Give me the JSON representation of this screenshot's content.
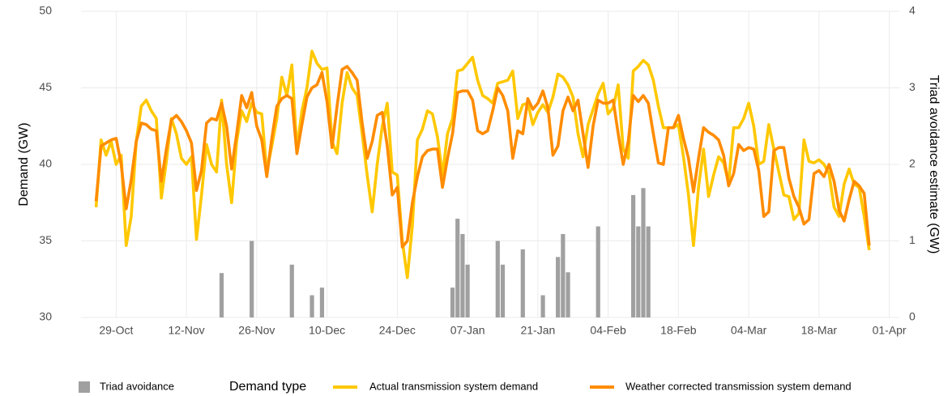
{
  "chart_data": {
    "type": "line",
    "y_label": "Demand (GW)",
    "y2_label": "Triad avoidance estimate (GW)",
    "legend_title": "Demand type",
    "ylim": [
      30,
      50
    ],
    "yticks": [
      30,
      35,
      40,
      45,
      50
    ],
    "y2lim": [
      0,
      4
    ],
    "y2ticks": [
      0,
      1,
      2,
      3,
      4
    ],
    "xlim": [
      "22-Oct",
      "03-Apr"
    ],
    "xticks": [
      "29-Oct",
      "12-Nov",
      "26-Nov",
      "10-Dec",
      "24-Dec",
      "07-Jan",
      "21-Jan",
      "04-Feb",
      "18-Feb",
      "04-Mar",
      "18-Mar",
      "01-Apr"
    ],
    "grid": true,
    "legend": "bottom",
    "x": [
      "25-Oct",
      "26-Oct",
      "27-Oct",
      "28-Oct",
      "29-Oct",
      "30-Oct",
      "31-Oct",
      "01-Nov",
      "02-Nov",
      "03-Nov",
      "04-Nov",
      "05-Nov",
      "06-Nov",
      "07-Nov",
      "08-Nov",
      "09-Nov",
      "10-Nov",
      "11-Nov",
      "12-Nov",
      "13-Nov",
      "14-Nov",
      "15-Nov",
      "16-Nov",
      "17-Nov",
      "18-Nov",
      "19-Nov",
      "20-Nov",
      "21-Nov",
      "22-Nov",
      "23-Nov",
      "24-Nov",
      "25-Nov",
      "26-Nov",
      "27-Nov",
      "28-Nov",
      "29-Nov",
      "30-Nov",
      "01-Dec",
      "02-Dec",
      "03-Dec",
      "04-Dec",
      "05-Dec",
      "06-Dec",
      "07-Dec",
      "08-Dec",
      "09-Dec",
      "10-Dec",
      "11-Dec",
      "12-Dec",
      "13-Dec",
      "14-Dec",
      "15-Dec",
      "16-Dec",
      "17-Dec",
      "18-Dec",
      "19-Dec",
      "20-Dec",
      "21-Dec",
      "22-Dec",
      "23-Dec",
      "24-Dec",
      "25-Dec",
      "26-Dec",
      "27-Dec",
      "28-Dec",
      "29-Dec",
      "30-Dec",
      "31-Dec",
      "01-Jan",
      "02-Jan",
      "03-Jan",
      "04-Jan",
      "05-Jan",
      "06-Jan",
      "07-Jan",
      "08-Jan",
      "09-Jan",
      "10-Jan",
      "11-Jan",
      "12-Jan",
      "13-Jan",
      "14-Jan",
      "15-Jan",
      "16-Jan",
      "17-Jan",
      "18-Jan",
      "19-Jan",
      "20-Jan",
      "21-Jan",
      "22-Jan",
      "23-Jan",
      "24-Jan",
      "25-Jan",
      "26-Jan",
      "27-Jan",
      "28-Jan",
      "29-Jan",
      "30-Jan",
      "31-Jan",
      "01-Feb",
      "02-Feb",
      "03-Feb",
      "04-Feb",
      "05-Feb",
      "06-Feb",
      "07-Feb",
      "08-Feb",
      "09-Feb",
      "10-Feb",
      "11-Feb",
      "12-Feb",
      "13-Feb",
      "14-Feb",
      "15-Feb",
      "16-Feb",
      "17-Feb",
      "18-Feb",
      "19-Feb",
      "20-Feb",
      "21-Feb",
      "22-Feb",
      "23-Feb",
      "24-Feb",
      "25-Feb",
      "26-Feb",
      "27-Feb",
      "28-Feb",
      "01-Mar",
      "02-Mar",
      "03-Mar",
      "04-Mar",
      "05-Mar",
      "06-Mar",
      "07-Mar",
      "08-Mar",
      "09-Mar",
      "10-Mar",
      "11-Mar",
      "12-Mar",
      "13-Mar",
      "14-Mar",
      "15-Mar",
      "16-Mar",
      "17-Mar",
      "18-Mar",
      "19-Mar",
      "20-Mar",
      "21-Mar",
      "22-Mar",
      "23-Mar",
      "24-Mar",
      "25-Mar",
      "26-Mar",
      "27-Mar",
      "28-Mar"
    ],
    "series": [
      {
        "name": "Triad avoidance",
        "type": "bar",
        "axis": "y2",
        "color": "#a0a0a0",
        "x": [
          "19-Nov",
          "25-Nov",
          "03-Dec",
          "07-Dec",
          "09-Dec",
          "04-Jan",
          "05-Jan",
          "06-Jan",
          "07-Jan",
          "13-Jan",
          "14-Jan",
          "18-Jan",
          "22-Jan",
          "25-Jan",
          "26-Jan",
          "27-Jan",
          "02-Feb",
          "09-Feb",
          "10-Feb",
          "11-Feb",
          "12-Feb"
        ],
        "values": [
          0.58,
          1.0,
          0.69,
          0.29,
          0.39,
          0.39,
          1.29,
          1.09,
          0.69,
          1.0,
          0.69,
          0.89,
          0.29,
          0.79,
          1.09,
          0.59,
          1.19,
          1.6,
          1.19,
          1.69,
          1.19
        ]
      },
      {
        "name": "Actual transmission system demand",
        "type": "line",
        "color": "#ffc800",
        "values": [
          37.2,
          41.6,
          40.6,
          41.5,
          40.0,
          40.6,
          34.7,
          36.6,
          41.5,
          43.8,
          44.2,
          43.5,
          43.0,
          37.8,
          40.2,
          43.0,
          42.0,
          40.4,
          40.0,
          40.5,
          35.1,
          38.0,
          41.3,
          40.0,
          39.5,
          44.2,
          40.0,
          37.5,
          41.5,
          43.5,
          42.8,
          44.0,
          43.4,
          43.3,
          39.5,
          41.2,
          43.0,
          45.7,
          44.5,
          46.5,
          41.0,
          43.5,
          45.0,
          47.4,
          46.6,
          46.2,
          46.3,
          41.5,
          40.7,
          44.0,
          46.0,
          45.0,
          44.5,
          42.0,
          39.3,
          36.9,
          40.0,
          42.5,
          44.0,
          39.5,
          39.3,
          35.0,
          32.6,
          36.0,
          41.6,
          42.3,
          43.5,
          43.3,
          41.8,
          39.3,
          42.0,
          43.0,
          46.1,
          46.2,
          46.6,
          47.0,
          45.5,
          44.5,
          44.3,
          44.0,
          45.3,
          45.4,
          45.5,
          46.1,
          43.0,
          43.9,
          44.0,
          42.6,
          43.4,
          43.9,
          43.4,
          44.4,
          45.9,
          45.7,
          45.2,
          44.4,
          42.0,
          40.5,
          42.6,
          43.6,
          44.6,
          45.3,
          43.3,
          43.7,
          45.2,
          41.0,
          40.4,
          46.1,
          46.4,
          46.8,
          46.5,
          45.5,
          43.8,
          42.4,
          42.4,
          42.4,
          42.6,
          40.5,
          38.0,
          34.7,
          38.5,
          41.0,
          37.9,
          39.3,
          40.5,
          40.1,
          38.8,
          42.4,
          42.4,
          43.0,
          44.0,
          42.5,
          40.0,
          40.2,
          42.6,
          41.0,
          39.5,
          38.0,
          37.9,
          36.4,
          36.8,
          41.6,
          40.2,
          40.1,
          40.3,
          40.0,
          39.4,
          37.2,
          36.6,
          38.7,
          39.7,
          38.7,
          38.5,
          36.6,
          34.4
        ]
      },
      {
        "name": "Weather corrected transmission system demand",
        "type": "line",
        "color": "#ff8c00",
        "values": [
          37.6,
          41.2,
          41.4,
          41.6,
          41.7,
          40.0,
          37.1,
          39.0,
          41.5,
          42.7,
          42.6,
          42.3,
          42.2,
          38.9,
          41.0,
          42.9,
          43.2,
          42.8,
          42.2,
          41.4,
          38.3,
          39.6,
          42.7,
          43.0,
          42.9,
          44.0,
          42.5,
          39.7,
          42.0,
          44.5,
          43.7,
          44.7,
          42.5,
          41.6,
          39.2,
          41.7,
          43.8,
          44.3,
          44.5,
          44.3,
          40.7,
          42.6,
          44.4,
          45.0,
          45.2,
          46.0,
          44.1,
          41.1,
          43.8,
          46.2,
          46.4,
          46.0,
          45.5,
          42.7,
          40.4,
          41.5,
          43.2,
          43.4,
          41.2,
          38.0,
          38.5,
          34.6,
          35.0,
          37.5,
          39.2,
          40.5,
          40.9,
          41.0,
          41.0,
          38.5,
          40.4,
          42.0,
          44.7,
          44.8,
          44.8,
          44.2,
          42.2,
          42.0,
          42.2,
          43.5,
          45.0,
          44.5,
          43.5,
          40.4,
          42.2,
          42.0,
          44.3,
          43.6,
          44.0,
          44.8,
          43.7,
          40.6,
          41.2,
          43.5,
          44.4,
          43.5,
          44.2,
          42.0,
          39.8,
          42.5,
          44.2,
          44.0,
          44.0,
          44.2,
          42.0,
          40.0,
          41.5,
          44.5,
          44.1,
          44.5,
          44.0,
          42.0,
          40.1,
          40.0,
          42.4,
          42.4,
          43.2,
          41.7,
          40.4,
          38.2,
          40.4,
          42.4,
          42.1,
          41.9,
          41.6,
          40.6,
          38.6,
          39.4,
          41.3,
          40.9,
          41.1,
          41.0,
          39.6,
          36.6,
          36.9,
          40.9,
          41.1,
          41.1,
          39.1,
          37.9,
          37.2,
          36.1,
          36.4,
          39.4,
          39.6,
          39.2,
          40.0,
          38.9,
          37.0,
          36.3,
          37.7,
          38.9,
          38.6,
          38.1,
          34.7
        ]
      }
    ]
  }
}
